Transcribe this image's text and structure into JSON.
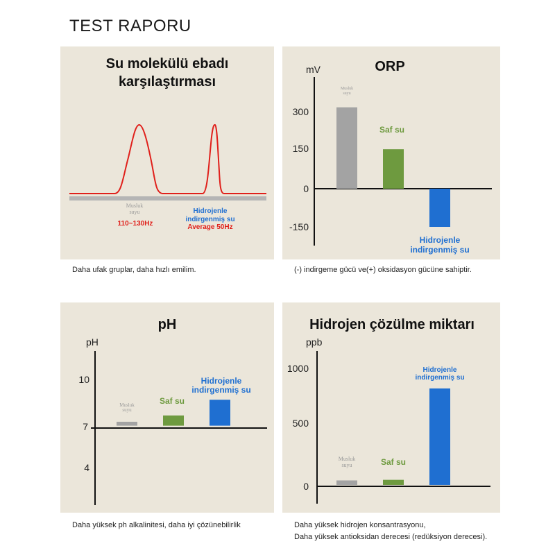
{
  "page_title": "TEST RAPORU",
  "colors": {
    "tap": "#a3a3a3",
    "pure": "#6e9a3f",
    "hydrogen": "#1f6fd1",
    "wave": "#e0201b",
    "panel_bg": "#ebe6da"
  },
  "panels": {
    "molecule": {
      "title_line1": "Su molekülü ebadı",
      "title_line2": "karşılaştırması",
      "tap_label_line1": "Musluk",
      "tap_label_line2": "suyu",
      "tap_freq": "110~130Hz",
      "hydrogen_label_line1": "Hidrojenle",
      "hydrogen_label_line2": "indirgenmiş su",
      "hydrogen_freq": "Average 50Hz",
      "caption": "Daha ufak gruplar, daha hızlı emilim."
    },
    "orp": {
      "title": "ORP",
      "unit": "mV",
      "tap_label_line1": "Musluk",
      "tap_label_line2": "suyu",
      "pure_label": "Saf su",
      "hydrogen_label_line1": "Hidrojenle",
      "hydrogen_label_line2": "indirgenmiş su",
      "caption": "(-) indirgeme gücü ve(+) oksidasyon gücüne sahiptir."
    },
    "ph": {
      "title": "pH",
      "unit": "pH",
      "tap_label_line1": "Musluk",
      "tap_label_line2": "suyu",
      "pure_label": "Saf su",
      "hydrogen_label_line1": "Hidrojenle",
      "hydrogen_label_line2": "indirgenmiş su",
      "caption": "Daha yüksek ph alkalinitesi, daha iyi çözünebilirlik"
    },
    "hydrogen": {
      "title": "Hidrojen çözülme miktarı",
      "unit": "ppb",
      "tap_label_line1": "Musluk",
      "tap_label_line2": "suyu",
      "pure_label": "Saf su",
      "hydrogen_label_line1": "Hidrojenle",
      "hydrogen_label_line2": "indirgenmiş su",
      "caption_line1": "Daha yüksek hidrojen konsantrasyonu,",
      "caption_line2": "Daha yüksek antioksidan derecesi (redüksiyon derecesi)."
    }
  },
  "chart_data": [
    {
      "type": "line",
      "title": "Su molekülü ebadı karşılaştırması",
      "series": [
        {
          "name": "Musluk suyu",
          "peak_frequency": "110~130Hz"
        },
        {
          "name": "Hidrojenle indirgenmiş su",
          "peak_frequency": "Average 50Hz"
        }
      ]
    },
    {
      "type": "bar",
      "title": "ORP",
      "ylabel": "mV",
      "ylim": [
        -170,
        320
      ],
      "yticks": [
        300,
        150,
        0,
        -150
      ],
      "categories": [
        "Musluk suyu",
        "Saf su",
        "Hidrojenle indirgenmiş su"
      ],
      "values": [
        320,
        155,
        -150
      ]
    },
    {
      "type": "bar",
      "title": "pH",
      "ylabel": "pH",
      "ylim": [
        2,
        12
      ],
      "baseline": 7,
      "yticks": [
        10,
        7,
        4
      ],
      "categories": [
        "Musluk suyu",
        "Saf su",
        "Hidrojenle indirgenmiş su"
      ],
      "values": [
        7.4,
        7.8,
        8.8
      ]
    },
    {
      "type": "bar",
      "title": "Hidrojen çözülme miktarı",
      "ylabel": "ppb",
      "ylim": [
        0,
        1000
      ],
      "yticks": [
        1000,
        500,
        0
      ],
      "categories": [
        "Musluk suyu",
        "Saf su",
        "Hidrojenle indirgenmiş su"
      ],
      "values": [
        50,
        55,
        830
      ]
    }
  ]
}
